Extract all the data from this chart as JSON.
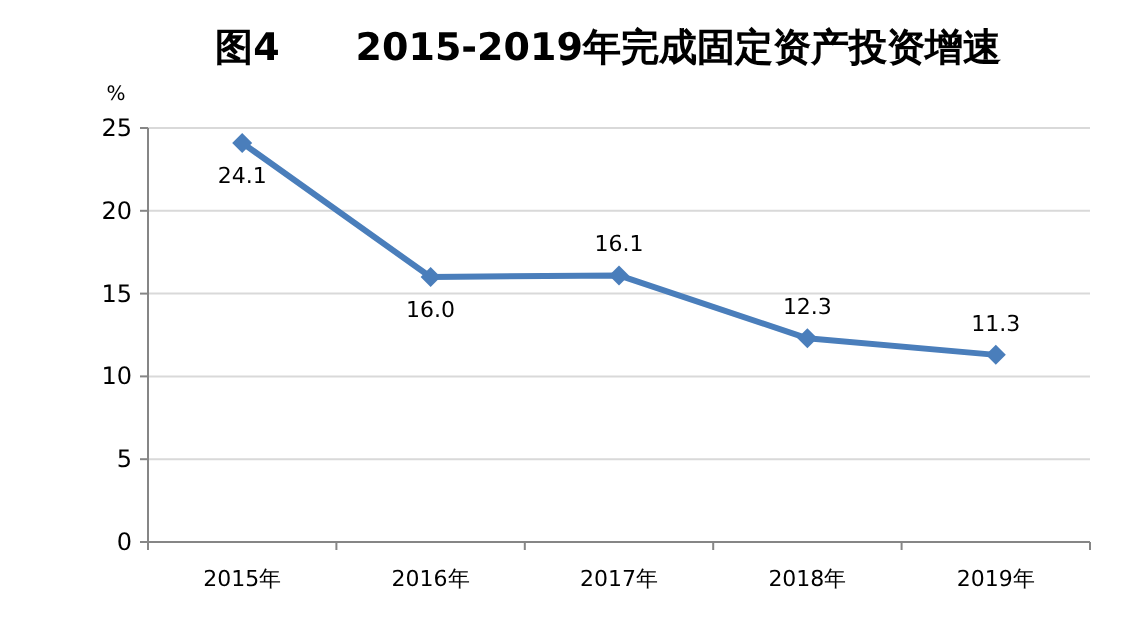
{
  "chart_data": {
    "type": "line",
    "title": "图4　　2015-2019年完成固定资产投资增速",
    "ylabel": "%",
    "categories": [
      "2015年",
      "2016年",
      "2017年",
      "2018年",
      "2019年"
    ],
    "series": [
      {
        "color": "#4a7ebb",
        "values": [
          24.1,
          16.0,
          16.1,
          12.3,
          11.3
        ],
        "value_labels": [
          "24.1",
          "16.0",
          "16.1",
          "12.3",
          "11.3"
        ]
      }
    ],
    "ylim": [
      0,
      25
    ],
    "yticks": [
      0,
      5,
      10,
      15,
      20,
      25
    ],
    "grid": "y",
    "marker": "diamond",
    "line_style": "solid"
  }
}
